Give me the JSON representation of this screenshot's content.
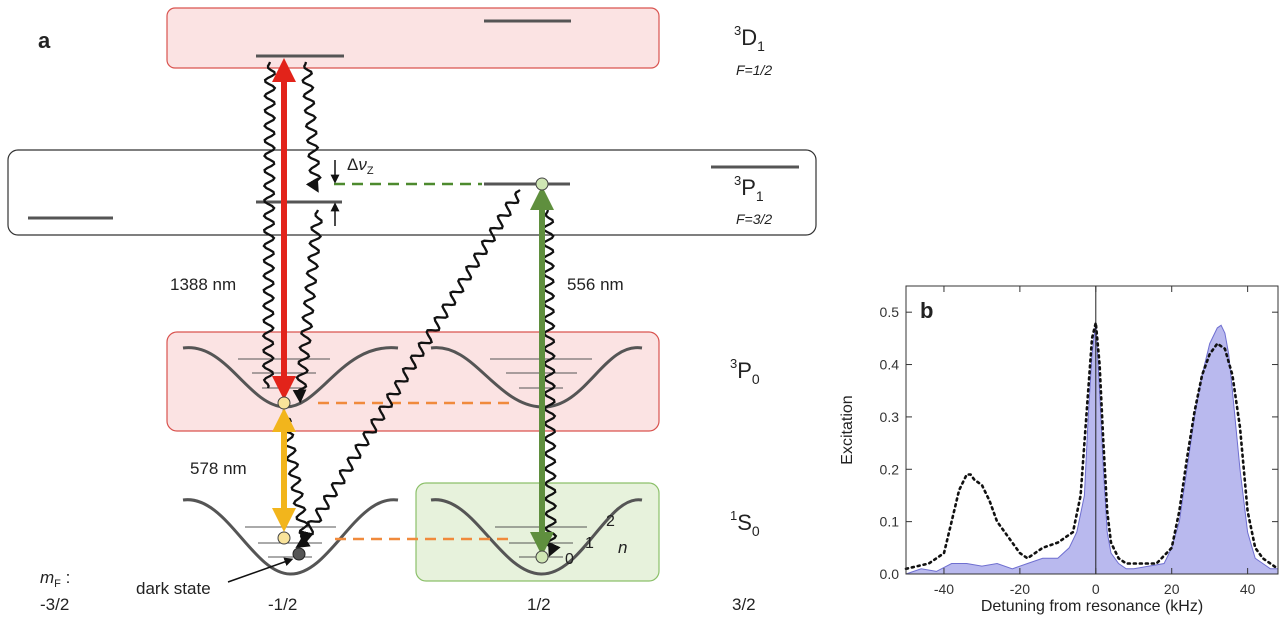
{
  "panel_a": {
    "label": "a",
    "levels": {
      "d1": {
        "name": "3D1",
        "sup": "3",
        "letter": "D",
        "sub": "1",
        "f_note": "F=1/2"
      },
      "p1": {
        "name": "3P1",
        "sup": "3",
        "letter": "P",
        "sub": "1",
        "f_note": "F=3/2"
      },
      "p0": {
        "name": "3P0",
        "sup": "3",
        "letter": "P",
        "sub": "0"
      },
      "s0": {
        "name": "1S0",
        "sup": "1",
        "letter": "S",
        "sub": "0"
      }
    },
    "transitions": {
      "red": {
        "wavelength": "1388 nm",
        "color": "#e2231a"
      },
      "yellow": {
        "wavelength": "578 nm",
        "color": "#f2b51c"
      },
      "green": {
        "wavelength": "556 nm",
        "color": "#5f8f3e"
      }
    },
    "zeeman_label": {
      "delta": "Δ",
      "nu": "ν",
      "sub": "Z"
    },
    "mf_label": {
      "main": "m",
      "sub": "F",
      "colon": " :"
    },
    "mf_values": [
      "-3/2",
      "-1/2",
      "1/2",
      "3/2"
    ],
    "vib_labels": [
      "0",
      "1",
      "2"
    ],
    "n_label": "n",
    "dark_state": "dark state",
    "colors": {
      "pink_box": "#fbe3e3",
      "pink_border": "#d9534f",
      "green_box": "#e7f2dc",
      "green_border": "#8cc06a",
      "dashed_green": "#4d8a2e",
      "dashed_orange": "#f08a3c",
      "level_gray": "#555555"
    }
  },
  "panel_b": {
    "label": "b",
    "chart_data": {
      "type": "area",
      "title": "",
      "xlabel": "Detuning from resonance  (kHz)",
      "ylabel": "Excitation",
      "xlim": [
        -50,
        48
      ],
      "ylim": [
        0,
        0.55
      ],
      "xticks": [
        -40,
        -20,
        0,
        20,
        40
      ],
      "yticks": [
        0.0,
        0.1,
        0.2,
        0.3,
        0.4,
        0.5
      ],
      "ytick_labels": [
        "0.0",
        "0.1",
        "0.2",
        "0.3",
        "0.4",
        "0.5"
      ],
      "vline_x": 0,
      "grid": false,
      "series": [
        {
          "style": "filled",
          "color": "#b9b9ee",
          "x": [
            -50,
            -46,
            -42,
            -38,
            -34,
            -30,
            -26,
            -22,
            -18,
            -14,
            -10,
            -7,
            -5,
            -3,
            -2,
            -1,
            0,
            1,
            2,
            3,
            4,
            6,
            8,
            10,
            14,
            18,
            20,
            22,
            24,
            26,
            28,
            30,
            32,
            33,
            34,
            35,
            36,
            38,
            40,
            42,
            44,
            46,
            48
          ],
          "y": [
            0.0,
            0.01,
            0.005,
            0.02,
            0.02,
            0.015,
            0.02,
            0.01,
            0.02,
            0.03,
            0.03,
            0.05,
            0.08,
            0.15,
            0.3,
            0.42,
            0.48,
            0.35,
            0.2,
            0.08,
            0.04,
            0.02,
            0.01,
            0.01,
            0.015,
            0.02,
            0.05,
            0.1,
            0.2,
            0.3,
            0.38,
            0.44,
            0.47,
            0.475,
            0.46,
            0.42,
            0.35,
            0.2,
            0.08,
            0.03,
            0.02,
            0.01,
            0.01
          ]
        },
        {
          "style": "dotted",
          "color": "#111111",
          "x": [
            -50,
            -44,
            -40,
            -38,
            -36,
            -34,
            -33,
            -32,
            -30,
            -28,
            -26,
            -24,
            -22,
            -20,
            -18,
            -14,
            -10,
            -6,
            -4,
            -3,
            -2,
            -1,
            0,
            1,
            2,
            3,
            4,
            6,
            8,
            12,
            16,
            20,
            22,
            24,
            26,
            28,
            30,
            32,
            34,
            36,
            38,
            40,
            42,
            44,
            48
          ],
          "y": [
            0.01,
            0.02,
            0.04,
            0.1,
            0.16,
            0.19,
            0.19,
            0.18,
            0.17,
            0.14,
            0.1,
            0.08,
            0.06,
            0.04,
            0.03,
            0.05,
            0.06,
            0.08,
            0.15,
            0.25,
            0.35,
            0.45,
            0.48,
            0.4,
            0.25,
            0.12,
            0.06,
            0.03,
            0.02,
            0.02,
            0.02,
            0.05,
            0.12,
            0.22,
            0.31,
            0.38,
            0.42,
            0.44,
            0.43,
            0.38,
            0.28,
            0.12,
            0.05,
            0.03,
            0.01
          ]
        }
      ]
    }
  }
}
